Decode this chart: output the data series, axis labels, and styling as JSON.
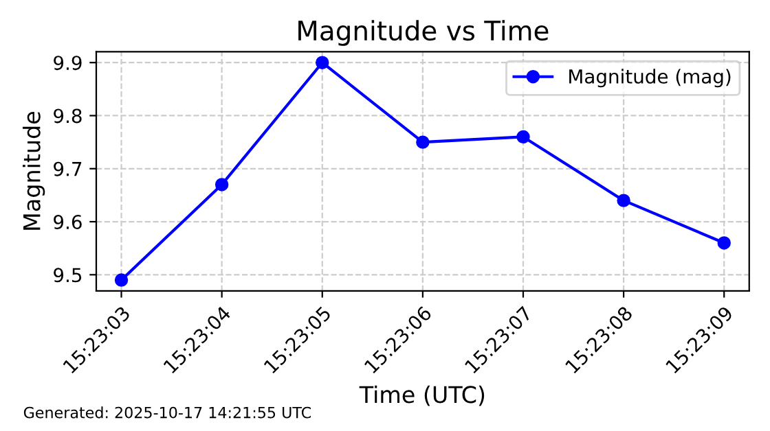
{
  "chart_data": {
    "type": "line",
    "title": "Magnitude vs Time",
    "xlabel": "Time (UTC)",
    "ylabel": "Magnitude",
    "categories": [
      "15:23:03",
      "15:23:04",
      "15:23:05",
      "15:23:06",
      "15:23:07",
      "15:23:08",
      "15:23:09"
    ],
    "series": [
      {
        "name": "Magnitude (mag)",
        "color": "#0000ff",
        "values": [
          9.49,
          9.67,
          9.9,
          9.75,
          9.76,
          9.64,
          9.56
        ]
      }
    ],
    "ylim": [
      9.4695,
      9.9205
    ],
    "yticks": [
      {
        "value": 9.5,
        "label": "9.5"
      },
      {
        "value": 9.6,
        "label": "9.6"
      },
      {
        "value": 9.7,
        "label": "9.7"
      },
      {
        "value": 9.8,
        "label": "9.8"
      },
      {
        "value": 9.9,
        "label": "9.9"
      }
    ],
    "grid": true,
    "legend": "top right",
    "marker": "circle",
    "line_style": "solid",
    "annotations": [
      "Generated: 2025-10-17 14:21:55 UTC"
    ]
  }
}
